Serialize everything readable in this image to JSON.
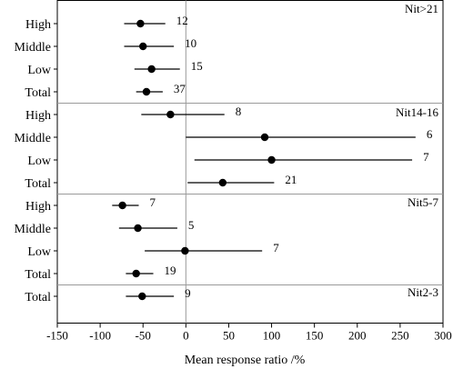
{
  "chart_data": {
    "type": "forest",
    "xlabel": "Mean response ratio /%",
    "xlim": [
      -150,
      300
    ],
    "xticks": [
      -150,
      -100,
      -50,
      0,
      50,
      100,
      150,
      200,
      250,
      300
    ],
    "reference_line": 0,
    "panels": [
      {
        "label": "Nit>21",
        "rows": [
          {
            "category": "High",
            "mean": -53,
            "lower": -72,
            "upper": -24,
            "n": "12"
          },
          {
            "category": "Middle",
            "mean": -50,
            "lower": -72,
            "upper": -14,
            "n": "10"
          },
          {
            "category": "Low",
            "mean": -40,
            "lower": -60,
            "upper": -7,
            "n": "15"
          },
          {
            "category": "Total",
            "mean": -46,
            "lower": -58,
            "upper": -27,
            "n": "37"
          }
        ]
      },
      {
        "label": "Nit14-16",
        "rows": [
          {
            "category": "High",
            "mean": -18,
            "lower": -52,
            "upper": 45,
            "n": "8"
          },
          {
            "category": "Middle",
            "mean": 92,
            "lower": 0,
            "upper": 268,
            "n": "6"
          },
          {
            "category": "Low",
            "mean": 100,
            "lower": 10,
            "upper": 264,
            "n": "7"
          },
          {
            "category": "Total",
            "mean": 43,
            "lower": 2,
            "upper": 103,
            "n": "21"
          }
        ]
      },
      {
        "label": "Nit5-7",
        "rows": [
          {
            "category": "High",
            "mean": -74,
            "lower": -86,
            "upper": -55,
            "n": "7"
          },
          {
            "category": "Middle",
            "mean": -56,
            "lower": -78,
            "upper": -10,
            "n": "5"
          },
          {
            "category": "Low",
            "mean": -1,
            "lower": -48,
            "upper": 89,
            "n": "7"
          },
          {
            "category": "Total",
            "mean": -58,
            "lower": -70,
            "upper": -38,
            "n": "19"
          }
        ]
      },
      {
        "label": "Nit2-3",
        "rows": [
          {
            "category": "Total",
            "mean": -51,
            "lower": -70,
            "upper": -14,
            "n": "9"
          }
        ]
      }
    ]
  }
}
